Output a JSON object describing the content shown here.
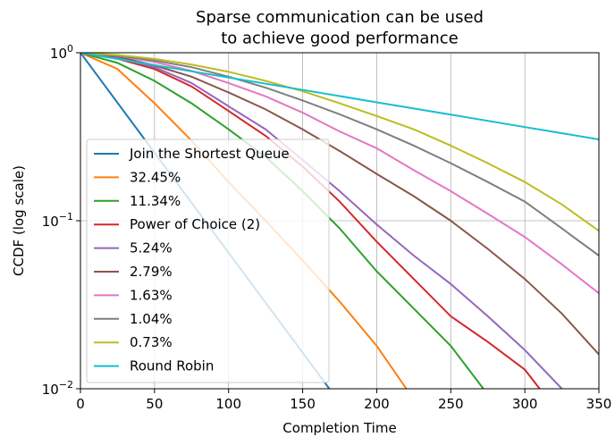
{
  "chart_data": {
    "type": "line",
    "title": "Sparse communication can be used\nto achieve good performance",
    "xlabel": "Completion Time",
    "ylabel": "CCDF (log scale)",
    "xlim": [
      0,
      350
    ],
    "ylim": [
      0.01,
      1
    ],
    "yscale": "log",
    "grid": true,
    "legend": "lower left",
    "xticks": [
      0,
      50,
      100,
      150,
      200,
      250,
      300,
      350
    ],
    "yticks": [
      {
        "value": 0.01,
        "label": "10^-2"
      },
      {
        "value": 0.1,
        "label": "10^-1"
      },
      {
        "value": 1,
        "label": "10^0"
      }
    ],
    "series": [
      {
        "name": "Join the Shortest Queue",
        "color": "#1f77b4",
        "x": [
          0,
          25,
          50,
          75,
          100,
          125,
          150,
          168,
          175
        ],
        "values": [
          1,
          0.504,
          0.254,
          0.128,
          0.0645,
          0.0325,
          0.0164,
          0.01,
          0.0083
        ]
      },
      {
        "name": "32.45%",
        "color": "#ff7f0e",
        "x": [
          0,
          25,
          50,
          75,
          100,
          125,
          150,
          175,
          200,
          220,
          225
        ],
        "values": [
          1,
          0.8,
          0.5,
          0.3,
          0.17,
          0.1,
          0.058,
          0.033,
          0.018,
          0.01,
          0.0085
        ]
      },
      {
        "name": "11.34%",
        "color": "#2ca02c",
        "x": [
          0,
          25,
          50,
          75,
          100,
          125,
          150,
          175,
          200,
          225,
          250,
          272
        ],
        "values": [
          1,
          0.87,
          0.68,
          0.5,
          0.35,
          0.24,
          0.15,
          0.09,
          0.05,
          0.03,
          0.018,
          0.01
        ]
      },
      {
        "name": "Power of Choice (2)",
        "color": "#d62728",
        "x": [
          0,
          25,
          50,
          75,
          100,
          125,
          150,
          175,
          200,
          225,
          250,
          275,
          300,
          310
        ],
        "values": [
          1,
          0.92,
          0.8,
          0.63,
          0.45,
          0.32,
          0.21,
          0.13,
          0.075,
          0.045,
          0.027,
          0.019,
          0.013,
          0.01
        ]
      },
      {
        "name": "5.24%",
        "color": "#9467bd",
        "x": [
          0,
          25,
          50,
          75,
          100,
          125,
          150,
          175,
          200,
          225,
          250,
          275,
          300,
          325
        ],
        "values": [
          1,
          0.93,
          0.82,
          0.66,
          0.48,
          0.35,
          0.23,
          0.15,
          0.095,
          0.062,
          0.042,
          0.027,
          0.017,
          0.01
        ]
      },
      {
        "name": "2.79%",
        "color": "#8c564b",
        "x": [
          0,
          25,
          50,
          75,
          100,
          125,
          150,
          175,
          200,
          225,
          250,
          275,
          300,
          325,
          350
        ],
        "values": [
          1,
          0.95,
          0.84,
          0.72,
          0.58,
          0.46,
          0.35,
          0.26,
          0.19,
          0.14,
          0.1,
          0.068,
          0.045,
          0.028,
          0.016
        ]
      },
      {
        "name": "1.63%",
        "color": "#e377c2",
        "x": [
          0,
          25,
          50,
          75,
          100,
          125,
          150,
          175,
          200,
          225,
          250,
          275,
          300,
          325,
          350
        ],
        "values": [
          1,
          0.96,
          0.88,
          0.78,
          0.66,
          0.55,
          0.44,
          0.34,
          0.27,
          0.2,
          0.15,
          0.11,
          0.08,
          0.055,
          0.037
        ]
      },
      {
        "name": "1.04%",
        "color": "#7f7f7f",
        "x": [
          0,
          25,
          50,
          75,
          100,
          125,
          150,
          175,
          200,
          225,
          250,
          275,
          300,
          325,
          350
        ],
        "values": [
          1,
          0.96,
          0.9,
          0.82,
          0.72,
          0.62,
          0.52,
          0.43,
          0.35,
          0.28,
          0.22,
          0.17,
          0.13,
          0.09,
          0.062
        ]
      },
      {
        "name": "0.73%",
        "color": "#bcbd22",
        "x": [
          0,
          25,
          50,
          75,
          100,
          125,
          150,
          175,
          200,
          225,
          250,
          275,
          300,
          325,
          350
        ],
        "values": [
          1,
          0.97,
          0.92,
          0.85,
          0.77,
          0.68,
          0.59,
          0.5,
          0.42,
          0.35,
          0.28,
          0.22,
          0.17,
          0.125,
          0.087
        ]
      },
      {
        "name": "Round Robin",
        "color": "#17becf",
        "x": [
          0,
          50,
          100,
          150,
          200,
          250,
          300,
          350
        ],
        "values": [
          1,
          0.844,
          0.712,
          0.601,
          0.507,
          0.428,
          0.361,
          0.305
        ]
      }
    ]
  }
}
